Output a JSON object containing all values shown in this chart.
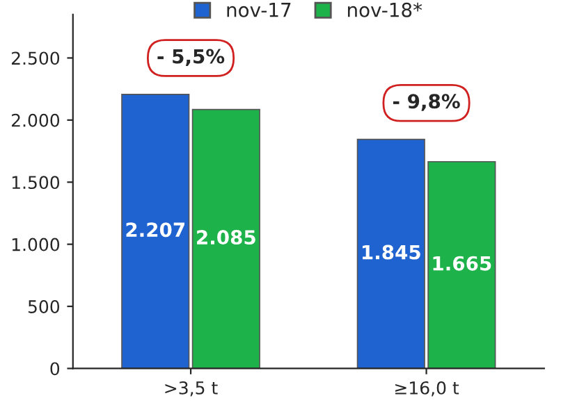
{
  "chart_data": {
    "type": "bar",
    "categories": [
      ">3,5 t",
      "≥16,0 t"
    ],
    "series": [
      {
        "name": "nov-17",
        "color": "#1f63d0",
        "values": [
          2207,
          1845
        ],
        "value_labels": [
          "2.207",
          "1.845"
        ]
      },
      {
        "name": "nov-18*",
        "color": "#1db34a",
        "values": [
          2085,
          1665
        ],
        "value_labels": [
          "2.085",
          "1.665"
        ]
      }
    ],
    "ylim": [
      0,
      2850
    ],
    "yticks": [
      0,
      500,
      {
        "value": 1000,
        "label": "1.000"
      },
      {
        "value": 1500,
        "label": "1.500"
      },
      {
        "value": 2000,
        "label": "2.000"
      },
      {
        "value": 2500,
        "label": "2.500"
      }
    ],
    "annotations": [
      "- 5,5%",
      "- 9,8%"
    ],
    "legend": "top",
    "grid": false
  }
}
